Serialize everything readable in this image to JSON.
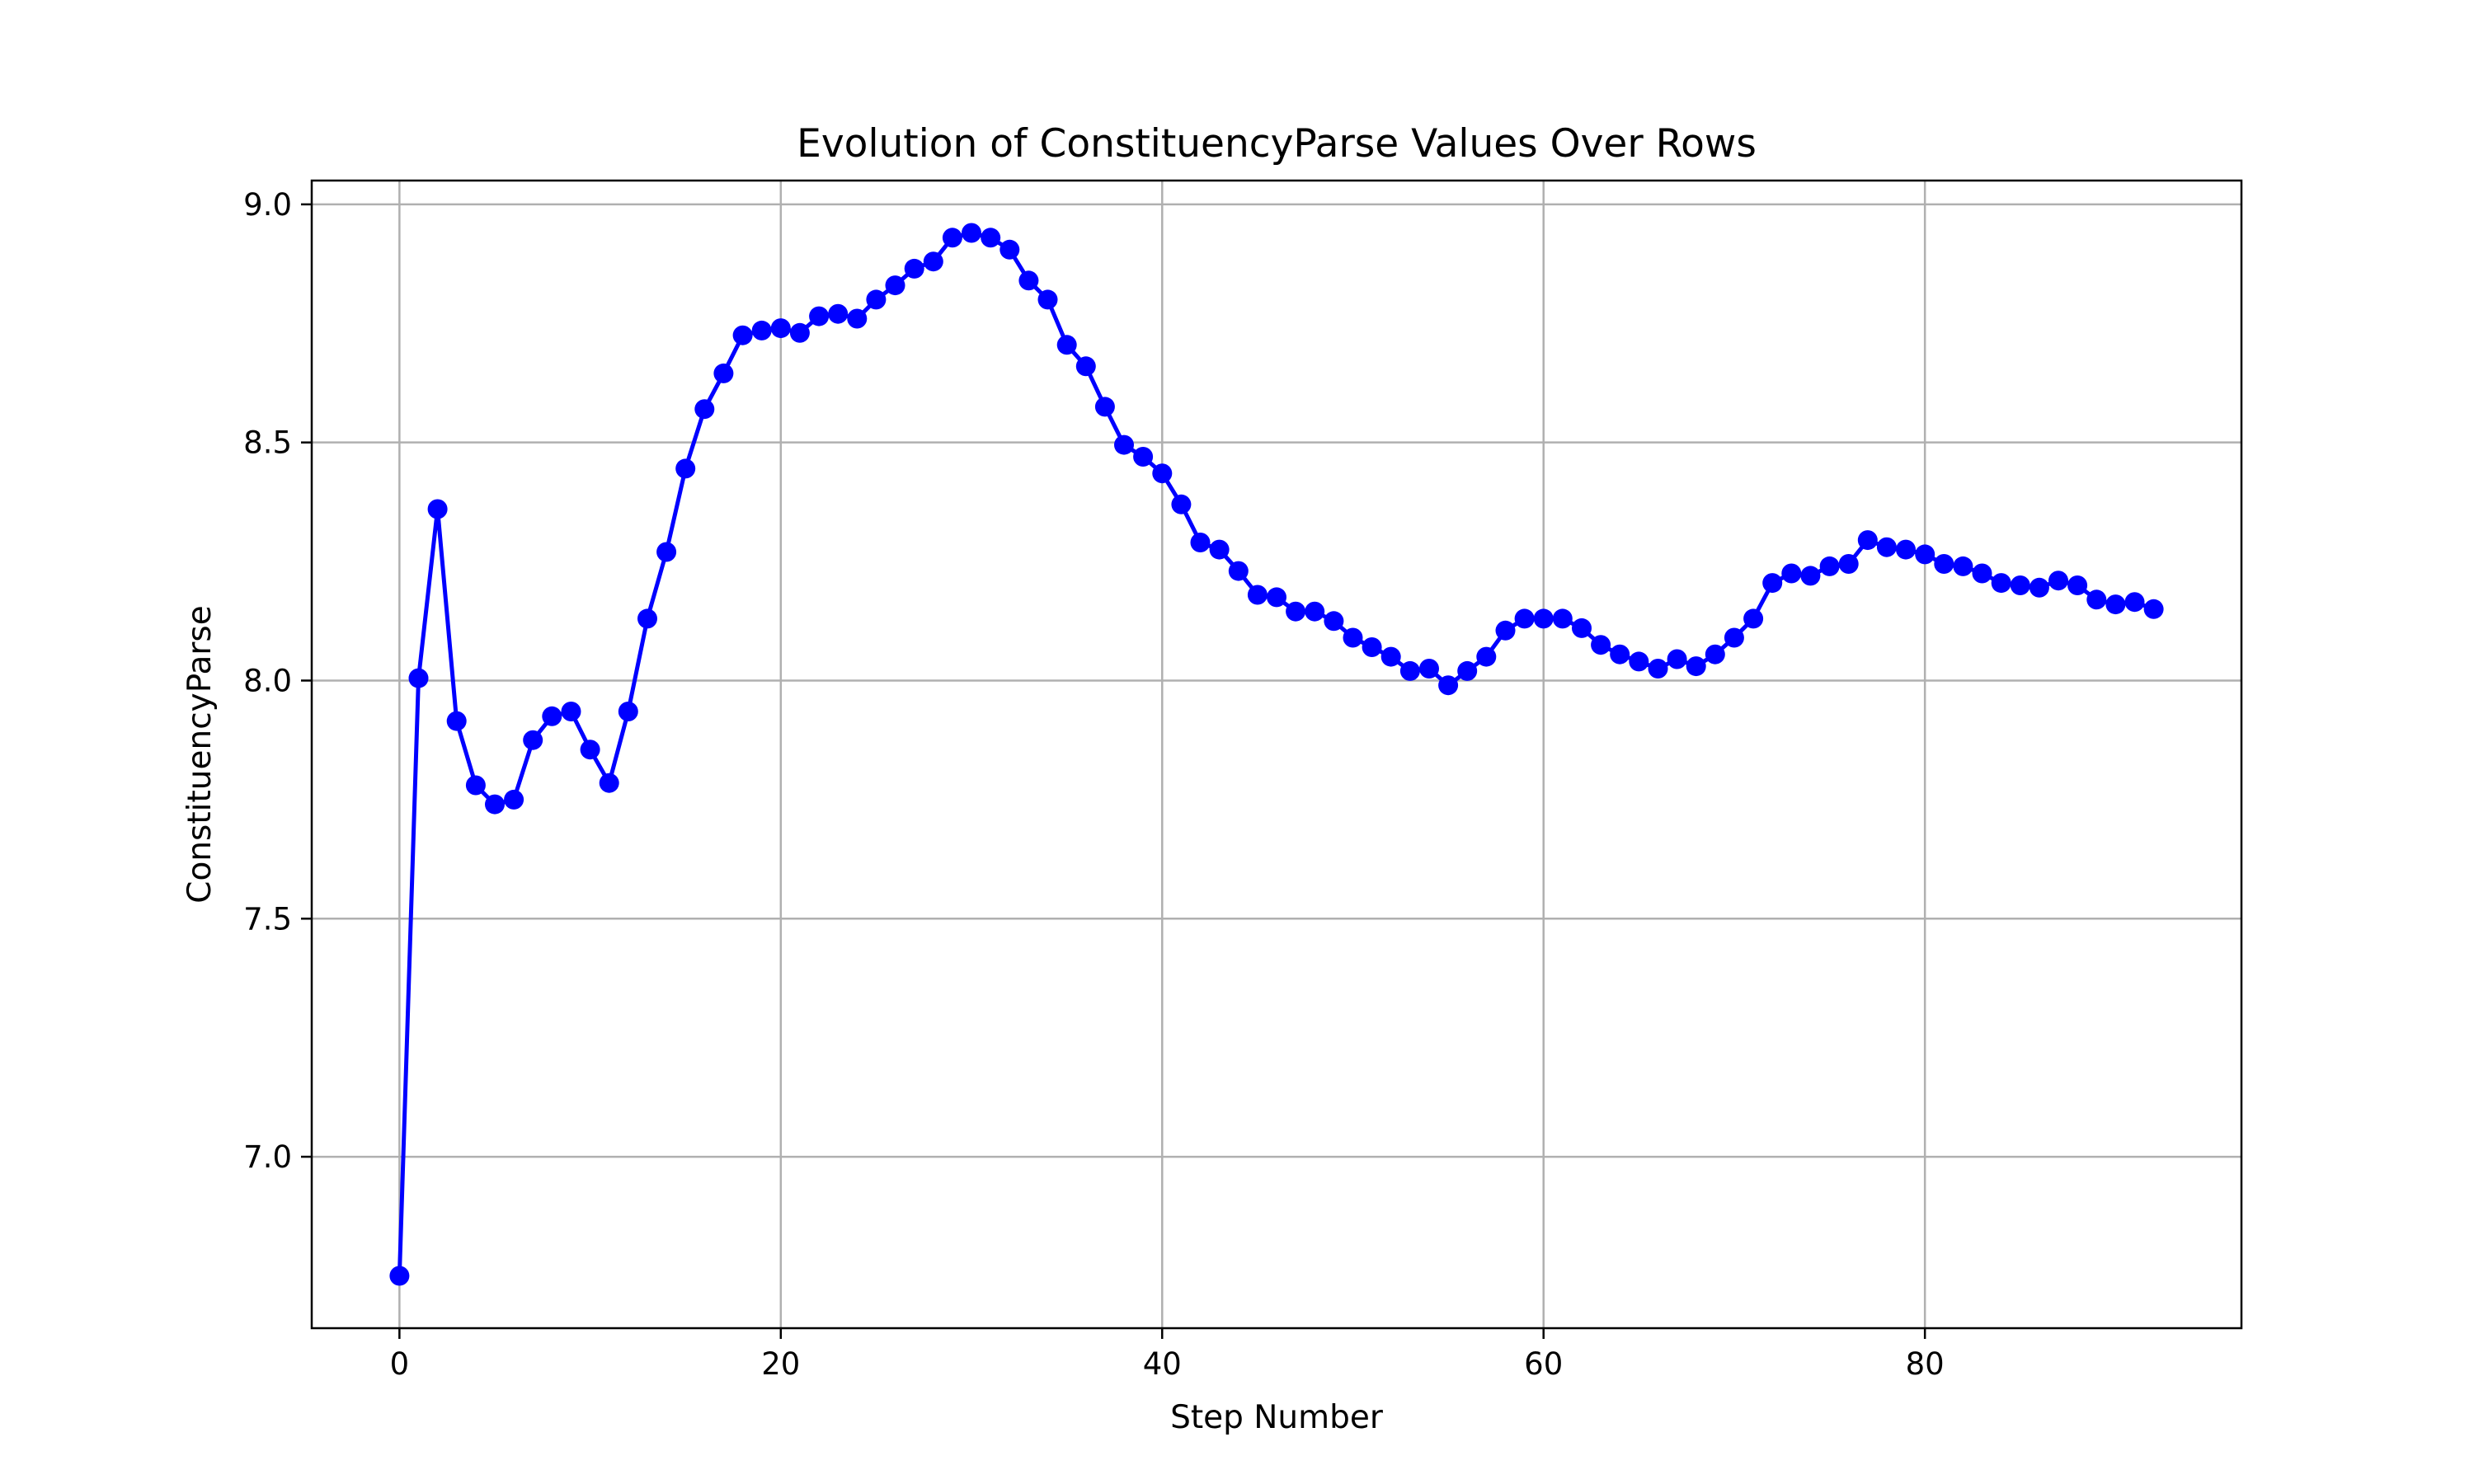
{
  "chart_data": {
    "type": "line",
    "title": "Evolution of ConstituencyParse Values Over Rows",
    "xlabel": "Step Number",
    "ylabel": "ConstituencyParse",
    "xlim": [
      -4.6,
      96.6
    ],
    "ylim": [
      6.64,
      9.05
    ],
    "xticks": [
      0,
      20,
      40,
      60,
      80
    ],
    "xtick_labels": [
      "0",
      "20",
      "40",
      "60",
      "80"
    ],
    "yticks": [
      7.0,
      7.5,
      8.0,
      8.5,
      9.0
    ],
    "ytick_labels": [
      "7.0",
      "7.5",
      "8.0",
      "8.5",
      "9.0"
    ],
    "grid": true,
    "series": [
      {
        "color": "#0000ff",
        "marker": "circle",
        "x": [
          0,
          1,
          2,
          3,
          4,
          5,
          6,
          7,
          8,
          9,
          10,
          11,
          12,
          13,
          14,
          15,
          16,
          17,
          18,
          19,
          20,
          21,
          22,
          23,
          24,
          25,
          26,
          27,
          28,
          29,
          30,
          31,
          32,
          33,
          34,
          35,
          36,
          37,
          38,
          39,
          40,
          41,
          42,
          43,
          44,
          45,
          46,
          47,
          48,
          49,
          50,
          51,
          52,
          53,
          54,
          55,
          56,
          57,
          58,
          59,
          60,
          61,
          62,
          63,
          64,
          65,
          66,
          67,
          68,
          69,
          70,
          71,
          72,
          73,
          74,
          75,
          76,
          77,
          78,
          79,
          80,
          81,
          82,
          83,
          84,
          85,
          86,
          87,
          88,
          89,
          90,
          91,
          92
        ],
        "y": [
          6.75,
          8.005,
          8.36,
          7.915,
          7.78,
          7.74,
          7.75,
          7.875,
          7.925,
          7.935,
          7.855,
          7.785,
          7.935,
          8.13,
          8.27,
          8.445,
          8.57,
          8.645,
          8.725,
          8.735,
          8.74,
          8.73,
          8.765,
          8.77,
          8.76,
          8.8,
          8.83,
          8.865,
          8.88,
          8.93,
          8.94,
          8.93,
          8.905,
          8.84,
          8.8,
          8.705,
          8.66,
          8.575,
          8.495,
          8.47,
          8.435,
          8.37,
          8.29,
          8.275,
          8.23,
          8.18,
          8.175,
          8.145,
          8.145,
          8.125,
          8.09,
          8.07,
          8.05,
          8.02,
          8.025,
          7.99,
          8.02,
          8.05,
          8.105,
          8.13,
          8.13,
          8.13,
          8.11,
          8.075,
          8.055,
          8.04,
          8.025,
          8.045,
          8.03,
          8.055,
          8.09,
          8.13,
          8.205,
          8.225,
          8.22,
          8.24,
          8.245,
          8.295,
          8.28,
          8.275,
          8.265,
          8.245,
          8.24,
          8.225,
          8.205,
          8.2,
          8.195,
          8.21,
          8.2,
          8.17,
          8.16,
          8.165,
          8.15
        ]
      }
    ]
  }
}
